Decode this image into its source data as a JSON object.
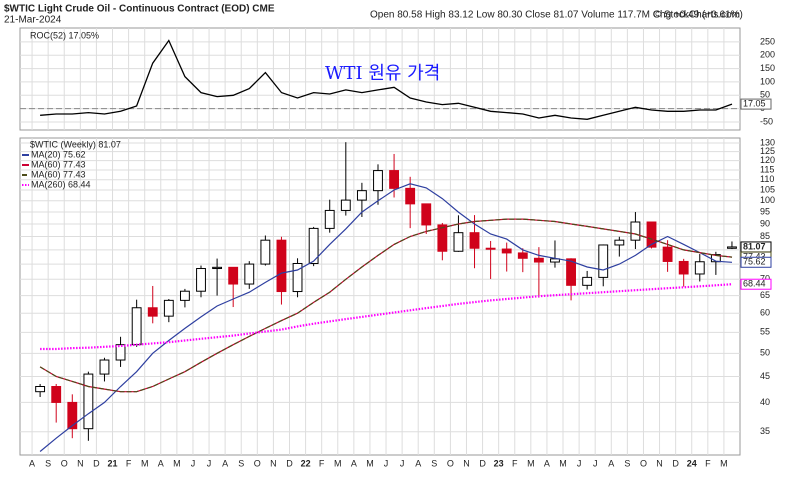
{
  "header": {
    "title": "$WTIC Light Crude Oil - Continuous Contract (EOD) CME",
    "date": "21-Mar-2024",
    "quote": "Open 80.58 High 83.12 Low 80.30 Close 81.07 Volume 117.7M Chg +0.49 (+0.61%)",
    "source": "© StockCharts.com"
  },
  "chart_data": [
    {
      "type": "line",
      "title": "ROC(52) 17.05%",
      "annotation": "WTI 원유 가격",
      "color": "#000000",
      "x": [
        0.5,
        1.5,
        2.5,
        3.5,
        4.5,
        5.5,
        6.5,
        7.5,
        8.5,
        9.5,
        10.5,
        11.5,
        12.5,
        13.5,
        14.5,
        15.5,
        16.5,
        17.5,
        18.5,
        19.5,
        20.5,
        21.5,
        22.5,
        23.5,
        24.5,
        25.5,
        26.5,
        27.5,
        28.5,
        29.5,
        30.5,
        31.5,
        32.5,
        33.5,
        34.5,
        35.5,
        36.5,
        37.5,
        38.5,
        39.5,
        40.5,
        41.5,
        42.5,
        43.5
      ],
      "values": [
        -25,
        -20,
        -20,
        -15,
        -20,
        -10,
        10,
        170,
        255,
        120,
        60,
        45,
        50,
        75,
        135,
        60,
        40,
        60,
        55,
        70,
        60,
        70,
        80,
        40,
        25,
        15,
        20,
        5,
        -10,
        -15,
        -20,
        -35,
        -25,
        -35,
        -40,
        -25,
        -10,
        5,
        -5,
        -10,
        -10,
        -5,
        -5,
        17.05
      ],
      "ylim": [
        -80,
        302
      ],
      "yticks": [
        -50,
        0,
        50,
        100,
        150,
        200,
        250
      ],
      "grid": true,
      "zero_line": 0,
      "value_tag": {
        "value": 17.05,
        "label": "17.05"
      }
    },
    {
      "type": "candlestick",
      "title": "$WTIC (Weekly) 81.07",
      "up_color": "#000000",
      "down_color": "#d0021b",
      "log_scale": true,
      "grid": true,
      "x": [
        0.5,
        1.5,
        2.5,
        3.5,
        4.5,
        5.5,
        6.5,
        7.5,
        8.5,
        9.5,
        10.5,
        11.5,
        12.5,
        13.5,
        14.5,
        15.5,
        16.5,
        17.5,
        18.5,
        19.5,
        20.5,
        21.5,
        22.5,
        23.5,
        24.5,
        25.5,
        26.5,
        27.5,
        28.5,
        29.5,
        30.5,
        31.5,
        32.5,
        33.5,
        34.5,
        35.5,
        36.5,
        37.5,
        38.5,
        39.5,
        40.5,
        41.5,
        42.5,
        43.5
      ],
      "open": [
        42,
        43,
        40,
        35.5,
        45.5,
        48.5,
        52,
        61.5,
        59.2,
        63.6,
        66.3,
        73.5,
        73.9,
        68.5,
        75,
        83.6,
        66.2,
        75.2,
        88.2,
        95.7,
        100.3,
        104.7,
        114.7,
        105.8,
        98.6,
        89.6,
        79.5,
        86.5,
        80.6,
        80.3,
        78.9,
        77,
        75.7,
        76.8,
        68.1,
        70.6,
        81.8,
        83.6,
        90.8,
        81,
        75.9,
        71.7,
        75.8,
        80.58
      ],
      "high": [
        43.5,
        43.5,
        41.5,
        46,
        49,
        53.9,
        63.8,
        67.9,
        64,
        67,
        74.5,
        76.9,
        74,
        76,
        85.4,
        84.9,
        77,
        88.8,
        100.5,
        130.5,
        108.5,
        118,
        123.7,
        111.5,
        98,
        90.4,
        93.6,
        93.7,
        83.3,
        82.7,
        80.6,
        81,
        83.5,
        77,
        72.7,
        82,
        84.9,
        95,
        90.9,
        83.6,
        76.8,
        78.5,
        79.3,
        83.12
      ],
      "low": [
        41,
        36.5,
        34,
        33.6,
        44,
        47,
        51.5,
        57.3,
        57.6,
        61.6,
        64.5,
        65,
        61.7,
        67,
        74.5,
        62.4,
        64.5,
        74.3,
        86.5,
        93.5,
        92.9,
        98.2,
        101.5,
        88.3,
        86,
        76.3,
        79.3,
        73.6,
        70.1,
        72.5,
        72.3,
        64.4,
        73.8,
        63.6,
        66.8,
        67.8,
        77.6,
        80.3,
        80.5,
        72.4,
        67.7,
        69.3,
        71.4,
        80.3
      ],
      "close": [
        43,
        40,
        35.5,
        45.5,
        48.5,
        52,
        61.5,
        59.2,
        63.6,
        66.3,
        73.5,
        73.9,
        68.5,
        75,
        83.6,
        66.2,
        75.2,
        88.2,
        95.7,
        100.3,
        104.7,
        114.7,
        105.8,
        98.6,
        89.6,
        79.5,
        86.5,
        80.6,
        80.3,
        78.9,
        77,
        75.7,
        76.8,
        68.1,
        70.6,
        81.8,
        83.6,
        90.8,
        81,
        75.9,
        71.7,
        75.8,
        78.3,
        81.07
      ],
      "series": [
        {
          "name": "MA(20) 75.62",
          "color": "#2e3fa0",
          "style": "solid",
          "values": [
            32,
            34,
            36,
            38,
            40,
            43,
            46,
            50,
            53,
            56,
            59,
            62,
            64,
            66,
            69,
            72,
            73,
            76,
            82,
            88,
            95,
            100,
            105,
            108,
            106,
            101,
            95,
            90,
            86,
            84,
            80,
            78,
            77,
            76,
            74,
            73,
            75,
            78,
            82,
            85,
            82,
            79,
            76,
            75.62
          ]
        },
        {
          "name": "MA(60) 77.43",
          "color": "#cc0033",
          "style": "solid",
          "values": [
            47,
            45,
            44,
            43,
            42.5,
            42,
            42,
            43,
            44.5,
            46,
            48,
            50,
            52,
            54,
            56,
            58,
            60,
            63,
            66,
            70,
            74,
            78,
            82,
            85,
            87,
            88.5,
            90,
            91,
            91.5,
            92,
            92,
            91.5,
            91,
            90,
            89,
            88,
            87,
            86,
            84,
            82,
            80,
            79,
            78,
            77.43
          ]
        },
        {
          "name": "MA(60) 77.43",
          "color": "#4d4d1a",
          "style": "dashed",
          "values": [
            47,
            45,
            44,
            43,
            42.5,
            42,
            42,
            43,
            44.5,
            46,
            48,
            50,
            52,
            54,
            56,
            58,
            60,
            63,
            66,
            70,
            74,
            78,
            82,
            85,
            87,
            88.5,
            90,
            91,
            91.5,
            92,
            92,
            91.5,
            91,
            90,
            89,
            88,
            87,
            86,
            84,
            82,
            80,
            79,
            78,
            77.43
          ]
        },
        {
          "name": "MA(260) 68.44",
          "color": "#ff00ff",
          "style": "dotted",
          "values": [
            51,
            51,
            51.2,
            51.3,
            51.5,
            51.7,
            52,
            52.3,
            52.6,
            53,
            53.4,
            53.8,
            54.2,
            54.7,
            55.2,
            55.7,
            56.5,
            57.2,
            57.8,
            58.4,
            59,
            59.6,
            60.2,
            60.8,
            61.4,
            62,
            62.6,
            63.1,
            63.6,
            64,
            64.4,
            64.8,
            65.1,
            65.4,
            65.7,
            66,
            66.3,
            66.6,
            66.9,
            67.2,
            67.5,
            67.8,
            68.1,
            68.44
          ]
        }
      ],
      "value_tags": [
        {
          "value": 81.07,
          "label": "81.07",
          "color": "#000000"
        },
        {
          "value": 77.43,
          "label": "77.43",
          "color": "#4d4d1a"
        },
        {
          "value": 75.62,
          "label": "75.62",
          "color": "#2e3fa0"
        },
        {
          "value": 68.44,
          "label": "68.44",
          "color": "#ff00ff"
        }
      ],
      "xlim": [
        -0.75,
        44
      ],
      "ylim": [
        31.5,
        133
      ],
      "yticks": [
        35,
        40,
        45,
        50,
        55,
        60,
        65,
        70,
        75,
        80,
        85,
        90,
        95,
        100,
        105,
        110,
        115,
        120,
        125,
        130
      ],
      "xticks": [
        {
          "value": 0,
          "label": "A"
        },
        {
          "value": 1,
          "label": "S"
        },
        {
          "value": 2,
          "label": "O"
        },
        {
          "value": 3,
          "label": "N"
        },
        {
          "value": 4,
          "label": "D"
        },
        {
          "value": 5,
          "label": "21"
        },
        {
          "value": 6,
          "label": "F"
        },
        {
          "value": 7,
          "label": "M"
        },
        {
          "value": 8,
          "label": "A"
        },
        {
          "value": 9,
          "label": "M"
        },
        {
          "value": 10,
          "label": "J"
        },
        {
          "value": 11,
          "label": "J"
        },
        {
          "value": 12,
          "label": "A"
        },
        {
          "value": 13,
          "label": "S"
        },
        {
          "value": 14,
          "label": "O"
        },
        {
          "value": 15,
          "label": "N"
        },
        {
          "value": 16,
          "label": "D"
        },
        {
          "value": 17,
          "label": "22"
        },
        {
          "value": 18,
          "label": "F"
        },
        {
          "value": 19,
          "label": "M"
        },
        {
          "value": 20,
          "label": "A"
        },
        {
          "value": 21,
          "label": "M"
        },
        {
          "value": 22,
          "label": "J"
        },
        {
          "value": 23,
          "label": "J"
        },
        {
          "value": 24,
          "label": "A"
        },
        {
          "value": 25,
          "label": "S"
        },
        {
          "value": 26,
          "label": "O"
        },
        {
          "value": 27,
          "label": "N"
        },
        {
          "value": 28,
          "label": "D"
        },
        {
          "value": 29,
          "label": "23"
        },
        {
          "value": 30,
          "label": "F"
        },
        {
          "value": 31,
          "label": "M"
        },
        {
          "value": 32,
          "label": "A"
        },
        {
          "value": 33,
          "label": "M"
        },
        {
          "value": 34,
          "label": "J"
        },
        {
          "value": 35,
          "label": "J"
        },
        {
          "value": 36,
          "label": "A"
        },
        {
          "value": 37,
          "label": "S"
        },
        {
          "value": 38,
          "label": "O"
        },
        {
          "value": 39,
          "label": "N"
        },
        {
          "value": 40,
          "label": "D"
        },
        {
          "value": 41,
          "label": "24"
        },
        {
          "value": 42,
          "label": "F"
        },
        {
          "value": 43,
          "label": "M"
        }
      ]
    }
  ]
}
